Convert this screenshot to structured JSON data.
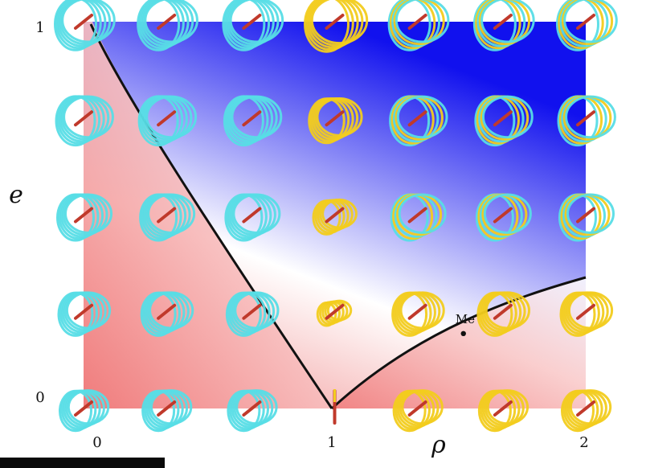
{
  "axes": {
    "x_label": "ρ",
    "y_label": "e",
    "x_ticks": [
      "0",
      "1",
      "2"
    ],
    "y_ticks": [
      "0",
      "1"
    ]
  },
  "annotation": {
    "label": "Me",
    "rho": 1.5,
    "e": 0.2
  },
  "colors": {
    "low_region": "#f07a7a",
    "high_region": "#1a1aee",
    "boundary": "#111111",
    "orbit_inner": "#57dde6",
    "orbit_outer": "#f2cc1e",
    "orbit_core": "#c0392b"
  },
  "grid": {
    "rho_values": [
      0,
      0.33,
      0.67,
      1,
      1.33,
      1.67,
      2
    ],
    "e_values": [
      0,
      0.25,
      0.5,
      0.75,
      1
    ]
  }
}
